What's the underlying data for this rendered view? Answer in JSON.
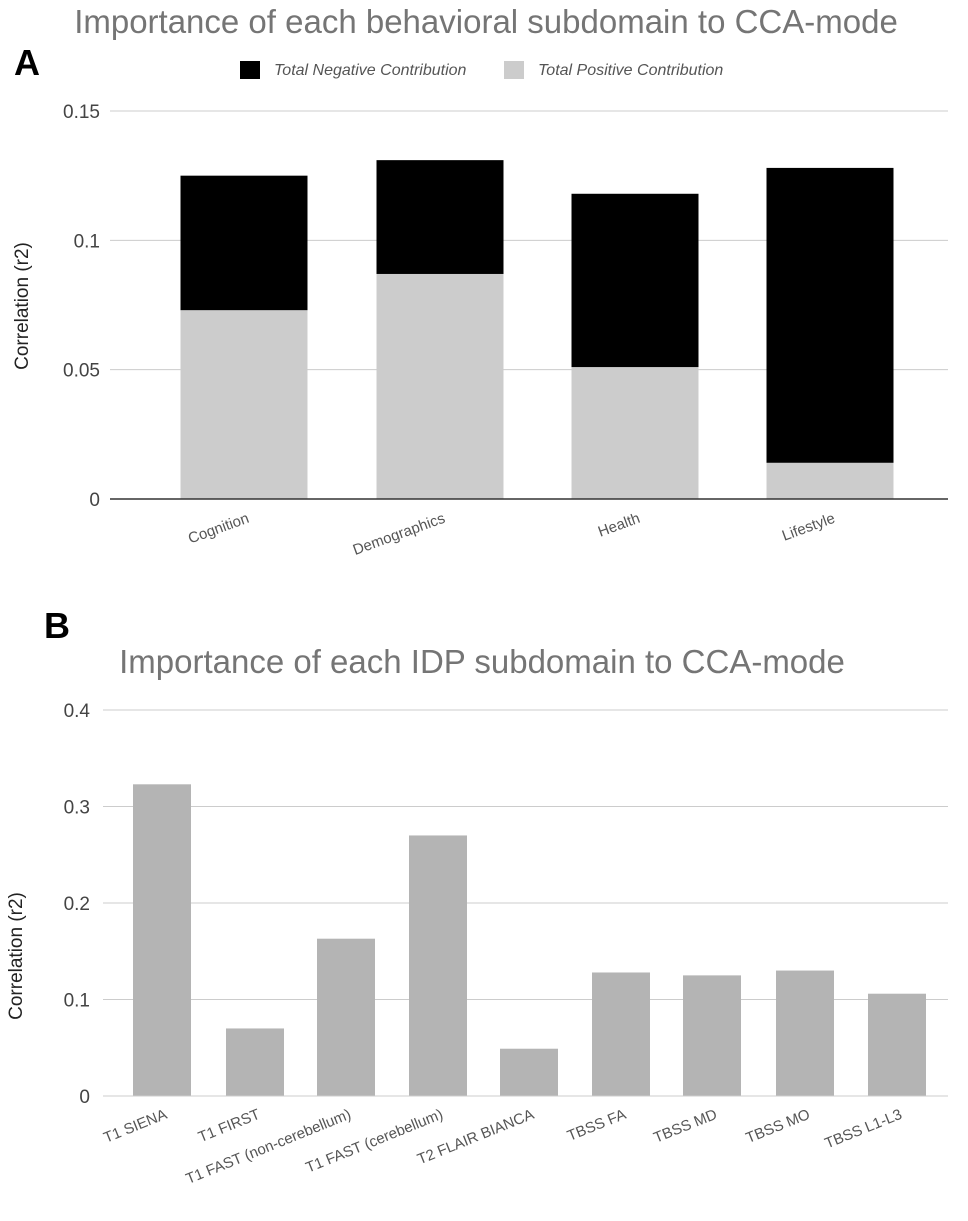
{
  "chart_data": [
    {
      "panel": "A",
      "type": "bar",
      "stacked": true,
      "title": "Importance of each behavioral subdomain to CCA-mode",
      "xlabel": "",
      "ylabel": "Correlation (r2)",
      "categories": [
        "Cognition",
        "Demographics",
        "Health",
        "Lifestyle"
      ],
      "series": [
        {
          "name": "Total Positive Contribution",
          "color": "#cccccc",
          "values": [
            0.073,
            0.087,
            0.051,
            0.014
          ]
        },
        {
          "name": "Total Negative Contribution",
          "color": "#000000",
          "values": [
            0.052,
            0.044,
            0.067,
            0.114
          ]
        }
      ],
      "ylim": [
        0,
        0.15
      ],
      "yticks": [
        0,
        0.05,
        0.1,
        0.15
      ],
      "ytick_labels": [
        "0",
        "0.05",
        "0.1",
        "0.15"
      ],
      "legend_order": [
        "Total Negative Contribution",
        "Total Positive Contribution"
      ],
      "legend_position": "top",
      "grid": true
    },
    {
      "panel": "B",
      "type": "bar",
      "stacked": false,
      "title": "Importance of each IDP subdomain to CCA-mode",
      "xlabel": "",
      "ylabel": "Correlation (r2)",
      "categories": [
        "T1 SIENA",
        "T1 FIRST",
        "T1 FAST (non-cerebellum)",
        "T1 FAST (cerebellum)",
        "T2 FLAIR BIANCA",
        "TBSS FA",
        "TBSS MD",
        "TBSS MO",
        "TBSS L1-L3"
      ],
      "series": [
        {
          "name": "Correlation (r2)",
          "color": "#b4b4b4",
          "values": [
            0.323,
            0.07,
            0.163,
            0.27,
            0.049,
            0.128,
            0.125,
            0.13,
            0.106
          ]
        }
      ],
      "ylim": [
        0,
        0.4
      ],
      "yticks": [
        0,
        0.1,
        0.2,
        0.3,
        0.4
      ],
      "ytick_labels": [
        "0",
        "0.1",
        "0.2",
        "0.3",
        "0.4"
      ],
      "grid": true
    }
  ]
}
